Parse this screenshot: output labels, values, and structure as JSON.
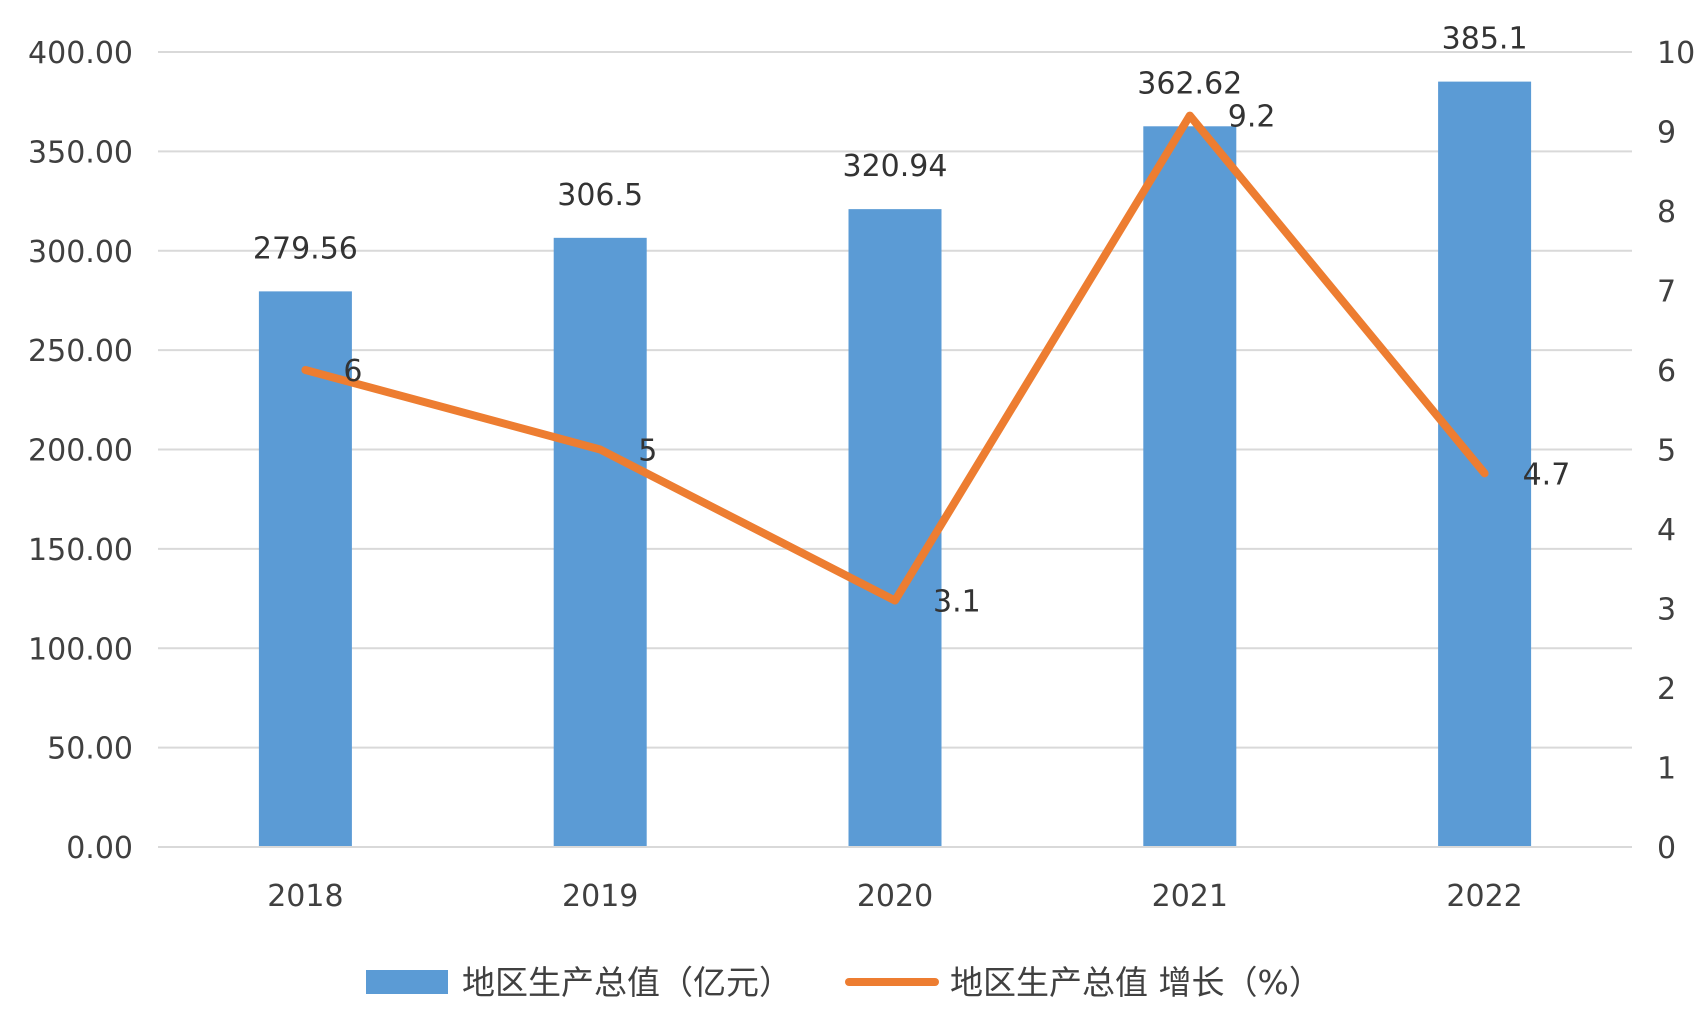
{
  "chart_data": {
    "type": "bar",
    "categories": [
      "2018",
      "2019",
      "2020",
      "2021",
      "2022"
    ],
    "series": [
      {
        "name": "地区生产总值（亿元）",
        "type": "bar",
        "axis": "left",
        "color": "#5B9BD5",
        "values": [
          279.56,
          306.5,
          320.94,
          362.62,
          385.1
        ],
        "labels": [
          "279.56",
          "306.5",
          "320.94",
          "362.62",
          "385.1"
        ]
      },
      {
        "name": "地区生产总值 增长（%）",
        "type": "line",
        "axis": "right",
        "color": "#ED7D31",
        "values": [
          6,
          5,
          3.1,
          9.2,
          4.7
        ],
        "labels": [
          "6",
          "5",
          "3.1",
          "9.2",
          "4.7"
        ]
      }
    ],
    "y_left": {
      "range": [
        0,
        400
      ],
      "ticks": [
        0,
        50,
        100,
        150,
        200,
        250,
        300,
        350,
        400
      ],
      "tick_labels": [
        "0.00",
        "50.00",
        "100.00",
        "150.00",
        "200.00",
        "250.00",
        "300.00",
        "350.00",
        "400.00"
      ]
    },
    "y_right": {
      "range": [
        0,
        10
      ],
      "ticks": [
        0,
        1,
        2,
        3,
        4,
        5,
        6,
        7,
        8,
        9,
        10
      ],
      "tick_labels": [
        "0",
        "1",
        "2",
        "3",
        "4",
        "5",
        "6",
        "7",
        "8",
        "9",
        "10"
      ]
    },
    "grid": true,
    "legend": "bottom",
    "title": "",
    "xlabel": "",
    "ylabel": ""
  }
}
